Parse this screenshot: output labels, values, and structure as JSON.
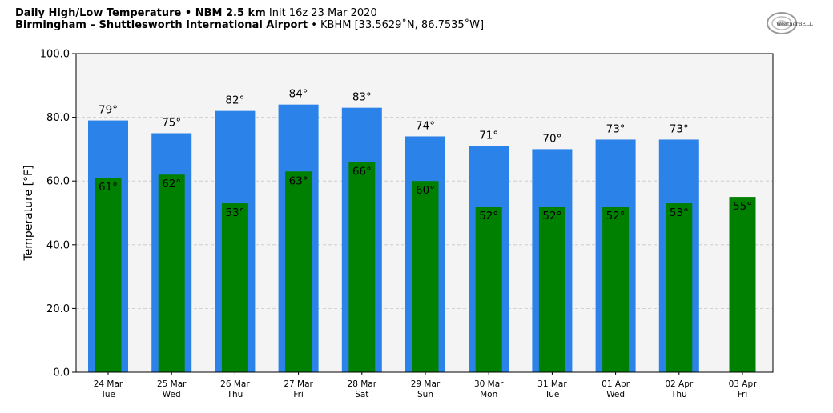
{
  "header": {
    "title": "Daily High/Low Temperature • NBM 2.5 km",
    "init": "Init 16z 23 Mar 2020",
    "location": "Birmingham – Shuttlesworth International Airport",
    "station": "• KBHM [33.5629˚N, 86.7535˚W]"
  },
  "logo": {
    "text": "WeatherBELL"
  },
  "chart_data": {
    "type": "bar",
    "ylabel": "Temperature [°F]",
    "xlabel": "",
    "ylim": [
      0,
      100
    ],
    "yticks": [
      "0.0",
      "20.0",
      "40.0",
      "60.0",
      "80.0",
      "100.0"
    ],
    "grid": true,
    "categories": [
      [
        "24 Mar",
        "Tue"
      ],
      [
        "25 Mar",
        "Wed"
      ],
      [
        "26 Mar",
        "Thu"
      ],
      [
        "27 Mar",
        "Fri"
      ],
      [
        "28 Mar",
        "Sat"
      ],
      [
        "29 Mar",
        "Sun"
      ],
      [
        "30 Mar",
        "Mon"
      ],
      [
        "31 Mar",
        "Tue"
      ],
      [
        "01 Apr",
        "Wed"
      ],
      [
        "02 Apr",
        "Thu"
      ],
      [
        "03 Apr",
        "Fri"
      ]
    ],
    "series": [
      {
        "values": [
          79,
          75,
          82,
          84,
          83,
          74,
          71,
          70,
          73,
          73,
          null
        ],
        "color": "#2b83ea",
        "labels": [
          "79°",
          "75°",
          "82°",
          "84°",
          "83°",
          "74°",
          "71°",
          "70°",
          "73°",
          "73°",
          ""
        ]
      },
      {
        "values": [
          61,
          62,
          53,
          63,
          66,
          60,
          52,
          52,
          52,
          53,
          55
        ],
        "color": "#008000",
        "labels": [
          "61°",
          "62°",
          "53°",
          "63°",
          "66°",
          "60°",
          "52°",
          "52°",
          "52°",
          "53°",
          "55°"
        ]
      }
    ]
  }
}
